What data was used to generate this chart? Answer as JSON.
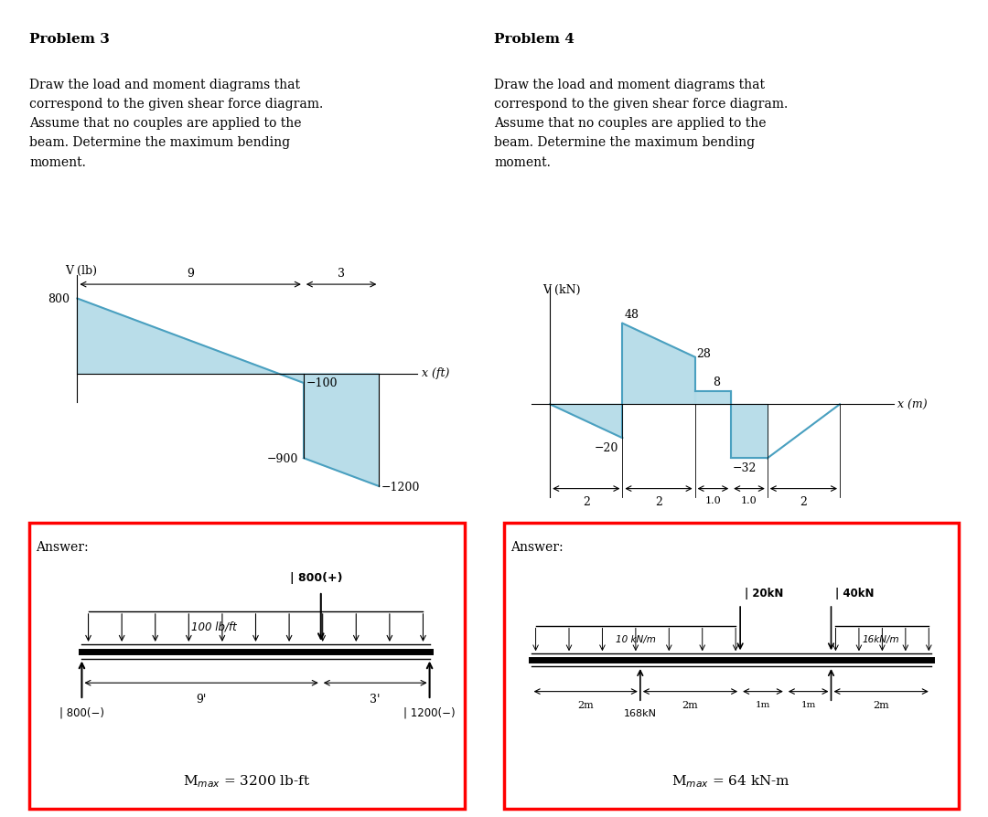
{
  "bg_color": "#ffffff",
  "p3_title": "Problem 3",
  "p3_text": "Draw the load and moment diagrams that\ncorrespond to the given shear force diagram.\nAssume that no couples are applied to the\nbeam. Determine the maximum bending\nmoment.",
  "p4_title": "Problem 4",
  "p4_text": "Draw the load and moment diagrams that\ncorrespond to the given shear force diagram.\nAssume that no couples are applied to the\nbeam. Determine the maximum bending\nmoment.",
  "shear_fill_color": "#add8e6",
  "shear_line_color": "#4aa0c0",
  "answer_border_color": "#cc0000",
  "p3_answer_text": "M$_{max}$ = 3200 lb-ft",
  "p4_answer_text": "M$_{max}$ = 64 kN-m"
}
